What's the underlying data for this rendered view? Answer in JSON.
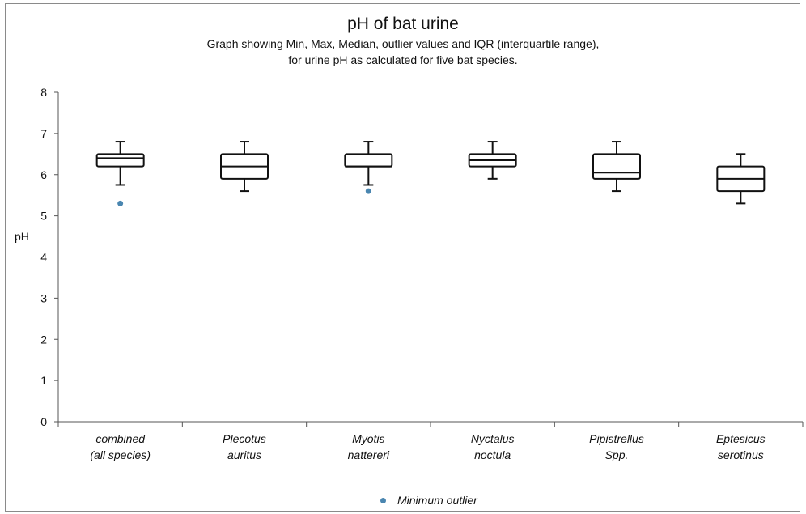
{
  "chart_data": {
    "type": "boxplot",
    "title": "pH of bat urine",
    "subtitle_lines": [
      "Graph showing Min, Max, Median, outlier values and IQR (interquartile range),",
      "for urine pH as calculated for five bat species."
    ],
    "ylabel": "pH",
    "ylim": [
      0,
      8
    ],
    "yticks": [
      "0",
      "1",
      "2",
      "3",
      "4",
      "5",
      "6",
      "7",
      "8"
    ],
    "grid": false,
    "categories": [
      [
        "combined",
        "(all species)"
      ],
      [
        "Plecotus",
        "auritus"
      ],
      [
        "Myotis",
        "nattereri"
      ],
      [
        "Nyctalus",
        "noctula"
      ],
      [
        "Pipistrellus",
        "Spp."
      ],
      [
        "Eptesicus",
        "serotinus"
      ]
    ],
    "boxes": [
      {
        "min": 5.75,
        "q1": 6.2,
        "median": 6.4,
        "q3": 6.5,
        "max": 6.8,
        "outliers": [
          5.3
        ]
      },
      {
        "min": 5.6,
        "q1": 5.9,
        "median": 6.2,
        "q3": 6.5,
        "max": 6.8,
        "outliers": []
      },
      {
        "min": 5.75,
        "q1": 6.2,
        "median": 6.2,
        "q3": 6.5,
        "max": 6.8,
        "outliers": [
          5.6
        ]
      },
      {
        "min": 5.9,
        "q1": 6.2,
        "median": 6.35,
        "q3": 6.5,
        "max": 6.8,
        "outliers": []
      },
      {
        "min": 5.6,
        "q1": 5.9,
        "median": 6.05,
        "q3": 6.5,
        "max": 6.8,
        "outliers": []
      },
      {
        "min": 5.3,
        "q1": 5.6,
        "median": 5.9,
        "q3": 6.2,
        "max": 6.5,
        "outliers": []
      }
    ],
    "legend": {
      "label": "Minimum outlier",
      "position": "bottom-center"
    },
    "colors": {
      "outlier": "#4a86b0",
      "box": "#111111",
      "axis": "#555555"
    }
  }
}
